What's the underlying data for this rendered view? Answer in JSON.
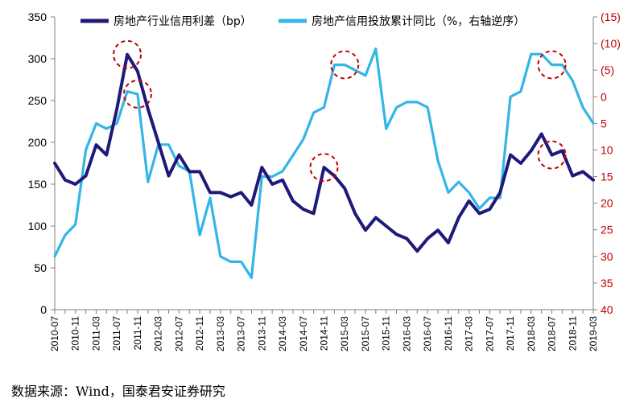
{
  "chart_data": {
    "type": "line",
    "x_categories": [
      "2010-07",
      "2010-09",
      "2010-11",
      "2011-01",
      "2011-03",
      "2011-05",
      "2011-07",
      "2011-09",
      "2011-11",
      "2012-01",
      "2012-03",
      "2012-05",
      "2012-07",
      "2012-09",
      "2012-11",
      "2013-01",
      "2013-03",
      "2013-05",
      "2013-07",
      "2013-09",
      "2013-11",
      "2014-01",
      "2014-03",
      "2014-05",
      "2014-07",
      "2014-09",
      "2014-11",
      "2015-01",
      "2015-03",
      "2015-05",
      "2015-07",
      "2015-09",
      "2015-11",
      "2016-01",
      "2016-03",
      "2016-05",
      "2016-07",
      "2016-09",
      "2016-11",
      "2017-01",
      "2017-03",
      "2017-05",
      "2017-07",
      "2017-09",
      "2017-11",
      "2018-01",
      "2018-03",
      "2018-05",
      "2018-07",
      "2018-09",
      "2018-11",
      "2019-01",
      "2019-03"
    ],
    "x_tick_labels": [
      "2010-07",
      "2010-11",
      "2011-03",
      "2011-07",
      "2011-11",
      "2012-03",
      "2012-07",
      "2012-11",
      "2013-03",
      "2013-07",
      "2013-11",
      "2014-03",
      "2014-07",
      "2014-11",
      "2015-03",
      "2015-07",
      "2015-11",
      "2016-03",
      "2016-07",
      "2016-11",
      "2017-03",
      "2017-07",
      "2017-11",
      "2018-03",
      "2018-07",
      "2018-11",
      "2019-03"
    ],
    "y_left": {
      "ticks": [
        0,
        50,
        100,
        150,
        200,
        250,
        300,
        350
      ],
      "ylim": [
        0,
        350
      ]
    },
    "y_right": {
      "tick_labels": [
        "(15)",
        "(10)",
        "(5)",
        "0",
        "5",
        "10",
        "15",
        "20",
        "25",
        "30",
        "35",
        "40"
      ],
      "ylim": [
        40,
        -15
      ],
      "reversed": true
    },
    "series": [
      {
        "name": "房地产行业信用利差（bp）",
        "axis": "left",
        "color": "#1f1a7a",
        "values": [
          175,
          155,
          150,
          160,
          197,
          185,
          240,
          305,
          285,
          240,
          200,
          160,
          185,
          165,
          165,
          140,
          140,
          135,
          140,
          125,
          170,
          150,
          155,
          130,
          120,
          115,
          170,
          160,
          145,
          115,
          95,
          110,
          100,
          90,
          85,
          70,
          85,
          95,
          80,
          110,
          130,
          115,
          120,
          140,
          185,
          175,
          190,
          210,
          185,
          190,
          160,
          165,
          155
        ]
      },
      {
        "name": "房地产信用投放累计同比（%，右轴逆序）",
        "axis": "right",
        "color": "#33b5e6",
        "values": [
          30,
          26,
          24,
          10,
          5,
          6,
          5,
          -1,
          -0.5,
          16,
          9,
          9,
          13,
          14,
          26,
          19,
          30,
          31,
          31,
          34,
          15,
          15,
          14,
          11,
          8,
          3,
          2,
          -6,
          -6,
          -5,
          -4,
          -9,
          6,
          2,
          1,
          1,
          2,
          12,
          18,
          16,
          18,
          21,
          19,
          19,
          0,
          -1,
          -8,
          -8,
          -6,
          -6,
          -3,
          2,
          5
        ]
      }
    ],
    "legend_position": "top",
    "annotations": [
      {
        "type": "dashed-circle",
        "series": 0,
        "x": "2011-09"
      },
      {
        "type": "dashed-circle",
        "series": 1,
        "x": "2011-11"
      },
      {
        "type": "dashed-circle",
        "series": 1,
        "x": "2015-03"
      },
      {
        "type": "dashed-circle",
        "series": 0,
        "x": "2014-11"
      },
      {
        "type": "dashed-circle",
        "series": 1,
        "x": "2018-07"
      },
      {
        "type": "dashed-circle",
        "series": 0,
        "x": "2018-07"
      }
    ],
    "grid": false
  },
  "legend": {
    "items": [
      {
        "label": "房地产行业信用利差（bp）",
        "color": "#1f1a7a"
      },
      {
        "label": "房地产信用投放累计同比（%，右轴逆序）",
        "color": "#33b5e6"
      }
    ]
  },
  "source": "数据来源：Wind，国泰君安证券研究",
  "colors": {
    "annotation": "#c00000",
    "right_axis": "#c00000"
  }
}
